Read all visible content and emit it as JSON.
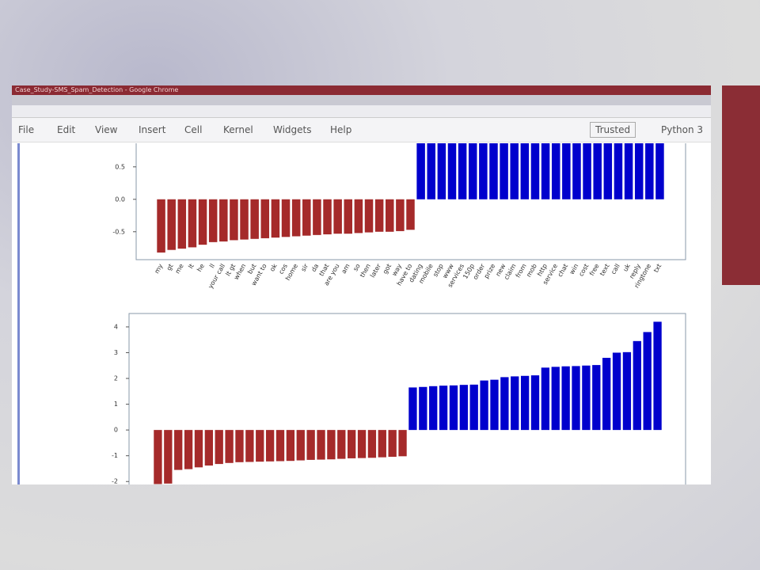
{
  "window": {
    "title": "Case_Study-SMS_Spam_Detection - Google Chrome"
  },
  "menu": [
    "File",
    "Edit",
    "View",
    "Insert",
    "Cell",
    "Kernel",
    "Widgets",
    "Help"
  ],
  "status": {
    "trusted": "Trusted",
    "kernel": "Python 3"
  },
  "chart_data": [
    {
      "type": "bar",
      "categories": [
        "my",
        "gt",
        "me",
        "lt",
        "he",
        "ll",
        "your call",
        "lt gt",
        "when",
        "but",
        "want to",
        "ok",
        "cos",
        "home",
        "sir",
        "da",
        "that",
        "are you",
        "am",
        "so",
        "then",
        "later",
        "got",
        "way",
        "have to",
        "dating",
        "mobile",
        "stop",
        "www",
        "services",
        "150p",
        "order",
        "prize",
        "new",
        "claim",
        "from",
        "mob",
        "http",
        "service",
        "chat",
        "win",
        "cost",
        "free",
        "text",
        "call",
        "uk",
        "reply",
        "ringtone",
        "txt"
      ],
      "values": [
        -0.82,
        -0.78,
        -0.76,
        -0.74,
        -0.7,
        -0.66,
        -0.65,
        -0.63,
        -0.62,
        -0.61,
        -0.6,
        -0.59,
        -0.58,
        -0.57,
        -0.56,
        -0.55,
        -0.54,
        -0.53,
        -0.53,
        -0.52,
        -0.51,
        -0.5,
        -0.5,
        -0.49,
        -0.47,
        0.95,
        0.97,
        0.98,
        1.0,
        1.01,
        1.02,
        1.04,
        1.05,
        1.07,
        1.08,
        1.1,
        1.11,
        1.13,
        1.15,
        1.16,
        1.18,
        1.2,
        1.22,
        1.24,
        1.26,
        1.28,
        1.3,
        1.32,
        1.35
      ],
      "colors": {
        "negative": "#a52a2a",
        "positive": "#0000cd"
      },
      "ylim": [
        -0.93,
        1.4
      ],
      "yticks": [
        0.5,
        {
          "value": 0,
          "label": "0.0"
        },
        -0.5
      ]
    },
    {
      "type": "bar",
      "values": [
        -2.1,
        -2.08,
        -1.55,
        -1.52,
        -1.45,
        -1.38,
        -1.32,
        -1.28,
        -1.25,
        -1.24,
        -1.23,
        -1.22,
        -1.21,
        -1.2,
        -1.18,
        -1.16,
        -1.15,
        -1.14,
        -1.12,
        -1.1,
        -1.09,
        -1.08,
        -1.06,
        -1.04,
        -1.02,
        1.65,
        1.67,
        1.7,
        1.72,
        1.73,
        1.75,
        1.76,
        1.92,
        1.95,
        2.05,
        2.08,
        2.1,
        2.12,
        2.42,
        2.45,
        2.47,
        2.48,
        2.5,
        2.52,
        2.8,
        3.0,
        3.02,
        3.45,
        3.8,
        4.2
      ],
      "colors": {
        "negative": "#a52a2a",
        "positive": "#0000cd"
      },
      "ylim": [
        -2.3,
        4.52
      ],
      "yticks": [
        4,
        3,
        2,
        1,
        0,
        -1,
        -2
      ]
    }
  ]
}
